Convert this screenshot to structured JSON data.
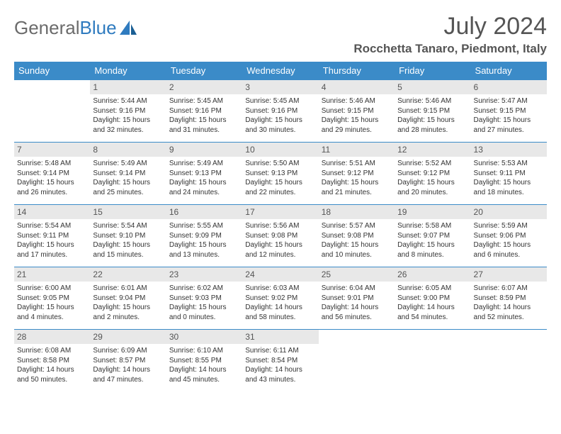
{
  "logo": {
    "text1": "General",
    "text2": "Blue"
  },
  "title": "July 2024",
  "location": "Rocchetta Tanaro, Piedmont, Italy",
  "colors": {
    "header_bg": "#3b8bc8",
    "header_text": "#ffffff",
    "daynum_bg": "#e8e8e8",
    "rule": "#3b8bc8",
    "text": "#333333",
    "title": "#555555"
  },
  "day_headers": [
    "Sunday",
    "Monday",
    "Tuesday",
    "Wednesday",
    "Thursday",
    "Friday",
    "Saturday"
  ],
  "weeks": [
    [
      null,
      {
        "n": "1",
        "sr": "Sunrise: 5:44 AM",
        "ss": "Sunset: 9:16 PM",
        "dl": "Daylight: 15 hours and 32 minutes."
      },
      {
        "n": "2",
        "sr": "Sunrise: 5:45 AM",
        "ss": "Sunset: 9:16 PM",
        "dl": "Daylight: 15 hours and 31 minutes."
      },
      {
        "n": "3",
        "sr": "Sunrise: 5:45 AM",
        "ss": "Sunset: 9:16 PM",
        "dl": "Daylight: 15 hours and 30 minutes."
      },
      {
        "n": "4",
        "sr": "Sunrise: 5:46 AM",
        "ss": "Sunset: 9:15 PM",
        "dl": "Daylight: 15 hours and 29 minutes."
      },
      {
        "n": "5",
        "sr": "Sunrise: 5:46 AM",
        "ss": "Sunset: 9:15 PM",
        "dl": "Daylight: 15 hours and 28 minutes."
      },
      {
        "n": "6",
        "sr": "Sunrise: 5:47 AM",
        "ss": "Sunset: 9:15 PM",
        "dl": "Daylight: 15 hours and 27 minutes."
      }
    ],
    [
      {
        "n": "7",
        "sr": "Sunrise: 5:48 AM",
        "ss": "Sunset: 9:14 PM",
        "dl": "Daylight: 15 hours and 26 minutes."
      },
      {
        "n": "8",
        "sr": "Sunrise: 5:49 AM",
        "ss": "Sunset: 9:14 PM",
        "dl": "Daylight: 15 hours and 25 minutes."
      },
      {
        "n": "9",
        "sr": "Sunrise: 5:49 AM",
        "ss": "Sunset: 9:13 PM",
        "dl": "Daylight: 15 hours and 24 minutes."
      },
      {
        "n": "10",
        "sr": "Sunrise: 5:50 AM",
        "ss": "Sunset: 9:13 PM",
        "dl": "Daylight: 15 hours and 22 minutes."
      },
      {
        "n": "11",
        "sr": "Sunrise: 5:51 AM",
        "ss": "Sunset: 9:12 PM",
        "dl": "Daylight: 15 hours and 21 minutes."
      },
      {
        "n": "12",
        "sr": "Sunrise: 5:52 AM",
        "ss": "Sunset: 9:12 PM",
        "dl": "Daylight: 15 hours and 20 minutes."
      },
      {
        "n": "13",
        "sr": "Sunrise: 5:53 AM",
        "ss": "Sunset: 9:11 PM",
        "dl": "Daylight: 15 hours and 18 minutes."
      }
    ],
    [
      {
        "n": "14",
        "sr": "Sunrise: 5:54 AM",
        "ss": "Sunset: 9:11 PM",
        "dl": "Daylight: 15 hours and 17 minutes."
      },
      {
        "n": "15",
        "sr": "Sunrise: 5:54 AM",
        "ss": "Sunset: 9:10 PM",
        "dl": "Daylight: 15 hours and 15 minutes."
      },
      {
        "n": "16",
        "sr": "Sunrise: 5:55 AM",
        "ss": "Sunset: 9:09 PM",
        "dl": "Daylight: 15 hours and 13 minutes."
      },
      {
        "n": "17",
        "sr": "Sunrise: 5:56 AM",
        "ss": "Sunset: 9:08 PM",
        "dl": "Daylight: 15 hours and 12 minutes."
      },
      {
        "n": "18",
        "sr": "Sunrise: 5:57 AM",
        "ss": "Sunset: 9:08 PM",
        "dl": "Daylight: 15 hours and 10 minutes."
      },
      {
        "n": "19",
        "sr": "Sunrise: 5:58 AM",
        "ss": "Sunset: 9:07 PM",
        "dl": "Daylight: 15 hours and 8 minutes."
      },
      {
        "n": "20",
        "sr": "Sunrise: 5:59 AM",
        "ss": "Sunset: 9:06 PM",
        "dl": "Daylight: 15 hours and 6 minutes."
      }
    ],
    [
      {
        "n": "21",
        "sr": "Sunrise: 6:00 AM",
        "ss": "Sunset: 9:05 PM",
        "dl": "Daylight: 15 hours and 4 minutes."
      },
      {
        "n": "22",
        "sr": "Sunrise: 6:01 AM",
        "ss": "Sunset: 9:04 PM",
        "dl": "Daylight: 15 hours and 2 minutes."
      },
      {
        "n": "23",
        "sr": "Sunrise: 6:02 AM",
        "ss": "Sunset: 9:03 PM",
        "dl": "Daylight: 15 hours and 0 minutes."
      },
      {
        "n": "24",
        "sr": "Sunrise: 6:03 AM",
        "ss": "Sunset: 9:02 PM",
        "dl": "Daylight: 14 hours and 58 minutes."
      },
      {
        "n": "25",
        "sr": "Sunrise: 6:04 AM",
        "ss": "Sunset: 9:01 PM",
        "dl": "Daylight: 14 hours and 56 minutes."
      },
      {
        "n": "26",
        "sr": "Sunrise: 6:05 AM",
        "ss": "Sunset: 9:00 PM",
        "dl": "Daylight: 14 hours and 54 minutes."
      },
      {
        "n": "27",
        "sr": "Sunrise: 6:07 AM",
        "ss": "Sunset: 8:59 PM",
        "dl": "Daylight: 14 hours and 52 minutes."
      }
    ],
    [
      {
        "n": "28",
        "sr": "Sunrise: 6:08 AM",
        "ss": "Sunset: 8:58 PM",
        "dl": "Daylight: 14 hours and 50 minutes."
      },
      {
        "n": "29",
        "sr": "Sunrise: 6:09 AM",
        "ss": "Sunset: 8:57 PM",
        "dl": "Daylight: 14 hours and 47 minutes."
      },
      {
        "n": "30",
        "sr": "Sunrise: 6:10 AM",
        "ss": "Sunset: 8:55 PM",
        "dl": "Daylight: 14 hours and 45 minutes."
      },
      {
        "n": "31",
        "sr": "Sunrise: 6:11 AM",
        "ss": "Sunset: 8:54 PM",
        "dl": "Daylight: 14 hours and 43 minutes."
      },
      null,
      null,
      null
    ]
  ]
}
